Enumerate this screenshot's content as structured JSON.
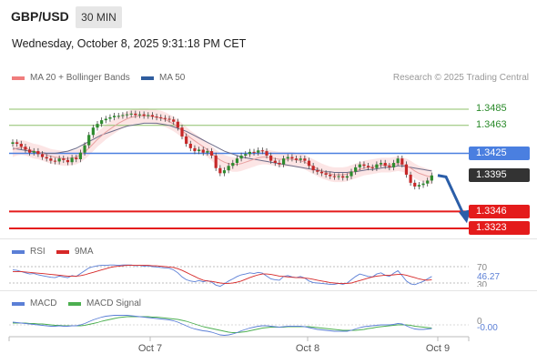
{
  "header": {
    "symbol": "GBP/USD",
    "interval": "30 MIN",
    "datetime": "Wednesday, October 8, 2025 9:31:18 PM CET",
    "credit": "Research © 2025 Trading Central"
  },
  "legend": {
    "ma20": {
      "label": "MA 20 + Bollinger Bands",
      "color": "#f07d7d"
    },
    "ma50": {
      "label": "MA 50",
      "color": "#2f5d9e"
    }
  },
  "levels": {
    "r2": "1.3485",
    "r1": "1.3463",
    "pivot": "1.3425",
    "last": "1.3395",
    "s1": "1.3346",
    "s2": "1.3323"
  },
  "rsi": {
    "title": "RSI",
    "signal": "9MA",
    "level_high": "70",
    "level_low": "30",
    "value": "46.27"
  },
  "macd": {
    "title": "MACD",
    "signal": "MACD Signal",
    "zero": "0",
    "value": "-0.00"
  },
  "xaxis": {
    "labels": [
      "Oct 7",
      "Oct 8",
      "Oct 9"
    ]
  },
  "colors": {
    "up": "#2e8b2e",
    "down": "#c62828",
    "pivot": "#4a7fe0",
    "support": "#e41b1b",
    "resistance": "#8dc06a",
    "last": "#333333",
    "forecast": "#2b5ea8",
    "rsi": "#5b7fd6",
    "rsi_ma": "#d62828",
    "macd": "#5b7fd6",
    "macd_signal": "#4caf50"
  },
  "chart_data": {
    "type": "candlestick",
    "pair": "GBP/USD",
    "timeframe": "30 MIN",
    "x_labels": [
      "Oct 7",
      "Oct 8",
      "Oct 9"
    ],
    "y_range": [
      1.3323,
      1.3485
    ],
    "close": [
      1.344,
      1.3438,
      1.3434,
      1.343,
      1.3426,
      1.3428,
      1.3424,
      1.342,
      1.3418,
      1.3415,
      1.3414,
      1.3418,
      1.3416,
      1.3413,
      1.3419,
      1.3417,
      1.3426,
      1.3436,
      1.345,
      1.346,
      1.3465,
      1.347,
      1.3472,
      1.3474,
      1.3476,
      1.3476,
      1.3477,
      1.3478,
      1.3479,
      1.3477,
      1.3478,
      1.3476,
      1.3477,
      1.3475,
      1.3474,
      1.3473,
      1.3472,
      1.3471,
      1.3468,
      1.346,
      1.3448,
      1.3438,
      1.3432,
      1.3428,
      1.343,
      1.3426,
      1.3428,
      1.3422,
      1.3405,
      1.3398,
      1.3402,
      1.3408,
      1.3412,
      1.3418,
      1.3422,
      1.3424,
      1.3427,
      1.3426,
      1.3429,
      1.3428,
      1.3422,
      1.3415,
      1.3412,
      1.341,
      1.3418,
      1.342,
      1.3418,
      1.3416,
      1.3418,
      1.3415,
      1.3408,
      1.3402,
      1.34,
      1.3398,
      1.3396,
      1.3394,
      1.3393,
      1.3394,
      1.3392,
      1.3394,
      1.34,
      1.3406,
      1.341,
      1.3408,
      1.3406,
      1.3405,
      1.341,
      1.3412,
      1.3408,
      1.3406,
      1.3412,
      1.3418,
      1.341,
      1.3396,
      1.3385,
      1.338,
      1.3382,
      1.3384,
      1.3388,
      1.3395
    ],
    "ma20": [
      1.343,
      1.3432,
      1.3433,
      1.3432,
      1.343,
      1.3428,
      1.3427,
      1.3425,
      1.3423,
      1.3421,
      1.342,
      1.3419,
      1.3418,
      1.3418,
      1.3419,
      1.342,
      1.3423,
      1.3427,
      1.3432,
      1.3438,
      1.3444,
      1.3449,
      1.3454,
      1.3458,
      1.3462,
      1.3466,
      1.3469,
      1.3472,
      1.3474,
      1.3475,
      1.3476,
      1.3476,
      1.3476,
      1.3475,
      1.3474,
      1.3473,
      1.3471,
      1.3468,
      1.3465,
      1.3461,
      1.3456,
      1.3451,
      1.3446,
      1.3442,
      1.3438,
      1.3434,
      1.343,
      1.3425,
      1.342,
      1.3416,
      1.3413,
      1.3411,
      1.341,
      1.341,
      1.3411,
      1.3413,
      1.3415,
      1.3417,
      1.3419,
      1.342,
      1.342,
      1.3419,
      1.3418,
      1.3417,
      1.3417,
      1.3417,
      1.3417,
      1.3416,
      1.3415,
      1.3413,
      1.341,
      1.3407,
      1.3404,
      1.3401,
      1.3399,
      1.3397,
      1.3396,
      1.3396,
      1.3396,
      1.3397,
      1.3399,
      1.3401,
      1.3403,
      1.3405,
      1.3406,
      1.3407,
      1.3408,
      1.3409,
      1.3409,
      1.3409,
      1.341,
      1.3411,
      1.341,
      1.3408,
      1.3405,
      1.3401,
      1.3398,
      1.3396,
      1.3394,
      1.3393
    ],
    "ma50": [
      1.3432,
      1.3431,
      1.343,
      1.3429,
      1.3428,
      1.3427,
      1.3426,
      1.3426,
      1.3425,
      1.3425,
      1.3425,
      1.3426,
      1.3427,
      1.3428,
      1.343,
      1.3432,
      1.3435,
      1.3438,
      1.3441,
      1.3444,
      1.3447,
      1.345,
      1.3452,
      1.3454,
      1.3456,
      1.3458,
      1.346,
      1.3462,
      1.3463,
      1.3464,
      1.3465,
      1.3466,
      1.3466,
      1.3466,
      1.3466,
      1.3465,
      1.3464,
      1.3463,
      1.3461,
      1.3459,
      1.3457,
      1.3455,
      1.3452,
      1.3449,
      1.3446,
      1.3443,
      1.344,
      1.3437,
      1.3434,
      1.3431,
      1.3428,
      1.3426,
      1.3424,
      1.3422,
      1.342,
      1.3419,
      1.3418,
      1.3417,
      1.3416,
      1.3415,
      1.3414,
      1.3413,
      1.3412,
      1.3411,
      1.341,
      1.3409,
      1.3408,
      1.3407,
      1.3406,
      1.3405,
      1.3404,
      1.3403,
      1.3402,
      1.3401,
      1.34,
      1.34,
      1.3399,
      1.3399,
      1.3399,
      1.3399,
      1.34,
      1.34,
      1.3401,
      1.3402,
      1.3403,
      1.3403,
      1.3404,
      1.3405,
      1.3406,
      1.3406,
      1.3407,
      1.3408,
      1.3408,
      1.3407,
      1.3406,
      1.3405,
      1.3404,
      1.3403,
      1.3402,
      1.3401
    ],
    "forecast": [
      [
        1.3395,
        0
      ],
      [
        1.3393,
        1
      ],
      [
        1.334,
        5
      ]
    ],
    "rsi_values": [
      62,
      61,
      58,
      55,
      52,
      53,
      50,
      48,
      46,
      44,
      43,
      47,
      45,
      43,
      48,
      46,
      53,
      60,
      67,
      70,
      72,
      73,
      73,
      74,
      74,
      73,
      74,
      74,
      74,
      72,
      73,
      71,
      72,
      70,
      69,
      68,
      67,
      66,
      62,
      55,
      45,
      38,
      35,
      33,
      36,
      33,
      36,
      32,
      25,
      22,
      28,
      35,
      40,
      46,
      50,
      52,
      55,
      53,
      56,
      54,
      47,
      40,
      38,
      37,
      46,
      48,
      45,
      43,
      46,
      42,
      35,
      31,
      30,
      29,
      28,
      27,
      27,
      29,
      27,
      30,
      38,
      46,
      52,
      49,
      46,
      45,
      52,
      55,
      49,
      46,
      54,
      60,
      48,
      35,
      28,
      26,
      30,
      34,
      40,
      46
    ],
    "rsi_ma_values": [
      58,
      58,
      58,
      57,
      56,
      55,
      54,
      53,
      52,
      51,
      50,
      49,
      48,
      47,
      47,
      47,
      48,
      50,
      53,
      56,
      59,
      62,
      65,
      68,
      70,
      71,
      72,
      73,
      73,
      73,
      73,
      73,
      73,
      72,
      72,
      71,
      70,
      69,
      68,
      65,
      61,
      56,
      51,
      46,
      41,
      37,
      35,
      34,
      32,
      30,
      29,
      29,
      30,
      32,
      35,
      39,
      43,
      47,
      50,
      52,
      52,
      51,
      49,
      47,
      46,
      45,
      44,
      43,
      43,
      42,
      41,
      39,
      37,
      35,
      33,
      31,
      30,
      29,
      29,
      29,
      30,
      33,
      36,
      39,
      42,
      45,
      47,
      48,
      49,
      49,
      50,
      51,
      51,
      49,
      46,
      43,
      40,
      38,
      37,
      38
    ],
    "macd_values": [
      0.0006,
      0.0005,
      0.0004,
      0.0003,
      0.0002,
      0.0001,
      0.0,
      -0.0001,
      -0.0002,
      -0.0003,
      -0.0003,
      -0.0002,
      -0.0003,
      -0.0003,
      -0.0002,
      -0.0002,
      0.0,
      0.0003,
      0.0007,
      0.0011,
      0.0014,
      0.0017,
      0.0019,
      0.002,
      0.0021,
      0.0021,
      0.0021,
      0.0021,
      0.002,
      0.0019,
      0.0018,
      0.0017,
      0.0016,
      0.0015,
      0.0014,
      0.0013,
      0.0012,
      0.0011,
      0.0009,
      0.0006,
      0.0002,
      -0.0002,
      -0.0006,
      -0.0009,
      -0.0011,
      -0.0013,
      -0.0014,
      -0.0016,
      -0.0019,
      -0.0022,
      -0.0023,
      -0.0022,
      -0.002,
      -0.0017,
      -0.0013,
      -0.001,
      -0.0007,
      -0.0005,
      -0.0003,
      -0.0002,
      -0.0002,
      -0.0003,
      -0.0004,
      -0.0005,
      -0.0004,
      -0.0003,
      -0.0003,
      -0.0003,
      -0.0003,
      -0.0004,
      -0.0006,
      -0.0008,
      -0.001,
      -0.0011,
      -0.0012,
      -0.0013,
      -0.0014,
      -0.0014,
      -0.0014,
      -0.0014,
      -0.0012,
      -0.0009,
      -0.0006,
      -0.0004,
      -0.0003,
      -0.0002,
      -0.0001,
      0.0,
      0.0,
      0.0,
      0.0001,
      0.0003,
      0.0002,
      -0.0002,
      -0.0006,
      -0.0009,
      -0.001,
      -0.001,
      -0.0009,
      -0.0008
    ],
    "macd_signal_values": [
      0.0004,
      0.0004,
      0.0004,
      0.0004,
      0.0003,
      0.0003,
      0.0002,
      0.0002,
      0.0001,
      0.0,
      -0.0001,
      -0.0001,
      -0.0002,
      -0.0002,
      -0.0002,
      -0.0002,
      -0.0002,
      -0.0001,
      0.0001,
      0.0003,
      0.0005,
      0.0008,
      0.001,
      0.0012,
      0.0014,
      0.0016,
      0.0017,
      0.0018,
      0.0018,
      0.0018,
      0.0018,
      0.0018,
      0.0018,
      0.0017,
      0.0017,
      0.0016,
      0.0015,
      0.0014,
      0.0013,
      0.0012,
      0.001,
      0.0008,
      0.0005,
      0.0002,
      -0.0001,
      -0.0004,
      -0.0006,
      -0.0008,
      -0.001,
      -0.0012,
      -0.0014,
      -0.0016,
      -0.0017,
      -0.0017,
      -0.0016,
      -0.0015,
      -0.0013,
      -0.0011,
      -0.0009,
      -0.0007,
      -0.0006,
      -0.0005,
      -0.0005,
      -0.0005,
      -0.0005,
      -0.0004,
      -0.0004,
      -0.0004,
      -0.0004,
      -0.0004,
      -0.0004,
      -0.0005,
      -0.0006,
      -0.0007,
      -0.0008,
      -0.0009,
      -0.001,
      -0.0011,
      -0.0012,
      -0.0012,
      -0.0012,
      -0.0012,
      -0.0011,
      -0.001,
      -0.0008,
      -0.0007,
      -0.0005,
      -0.0004,
      -0.0003,
      -0.0002,
      -0.0001,
      0.0,
      0.0,
      0.0,
      -0.0001,
      -0.0003,
      -0.0004,
      -0.0005,
      -0.0006,
      -0.0007
    ]
  }
}
